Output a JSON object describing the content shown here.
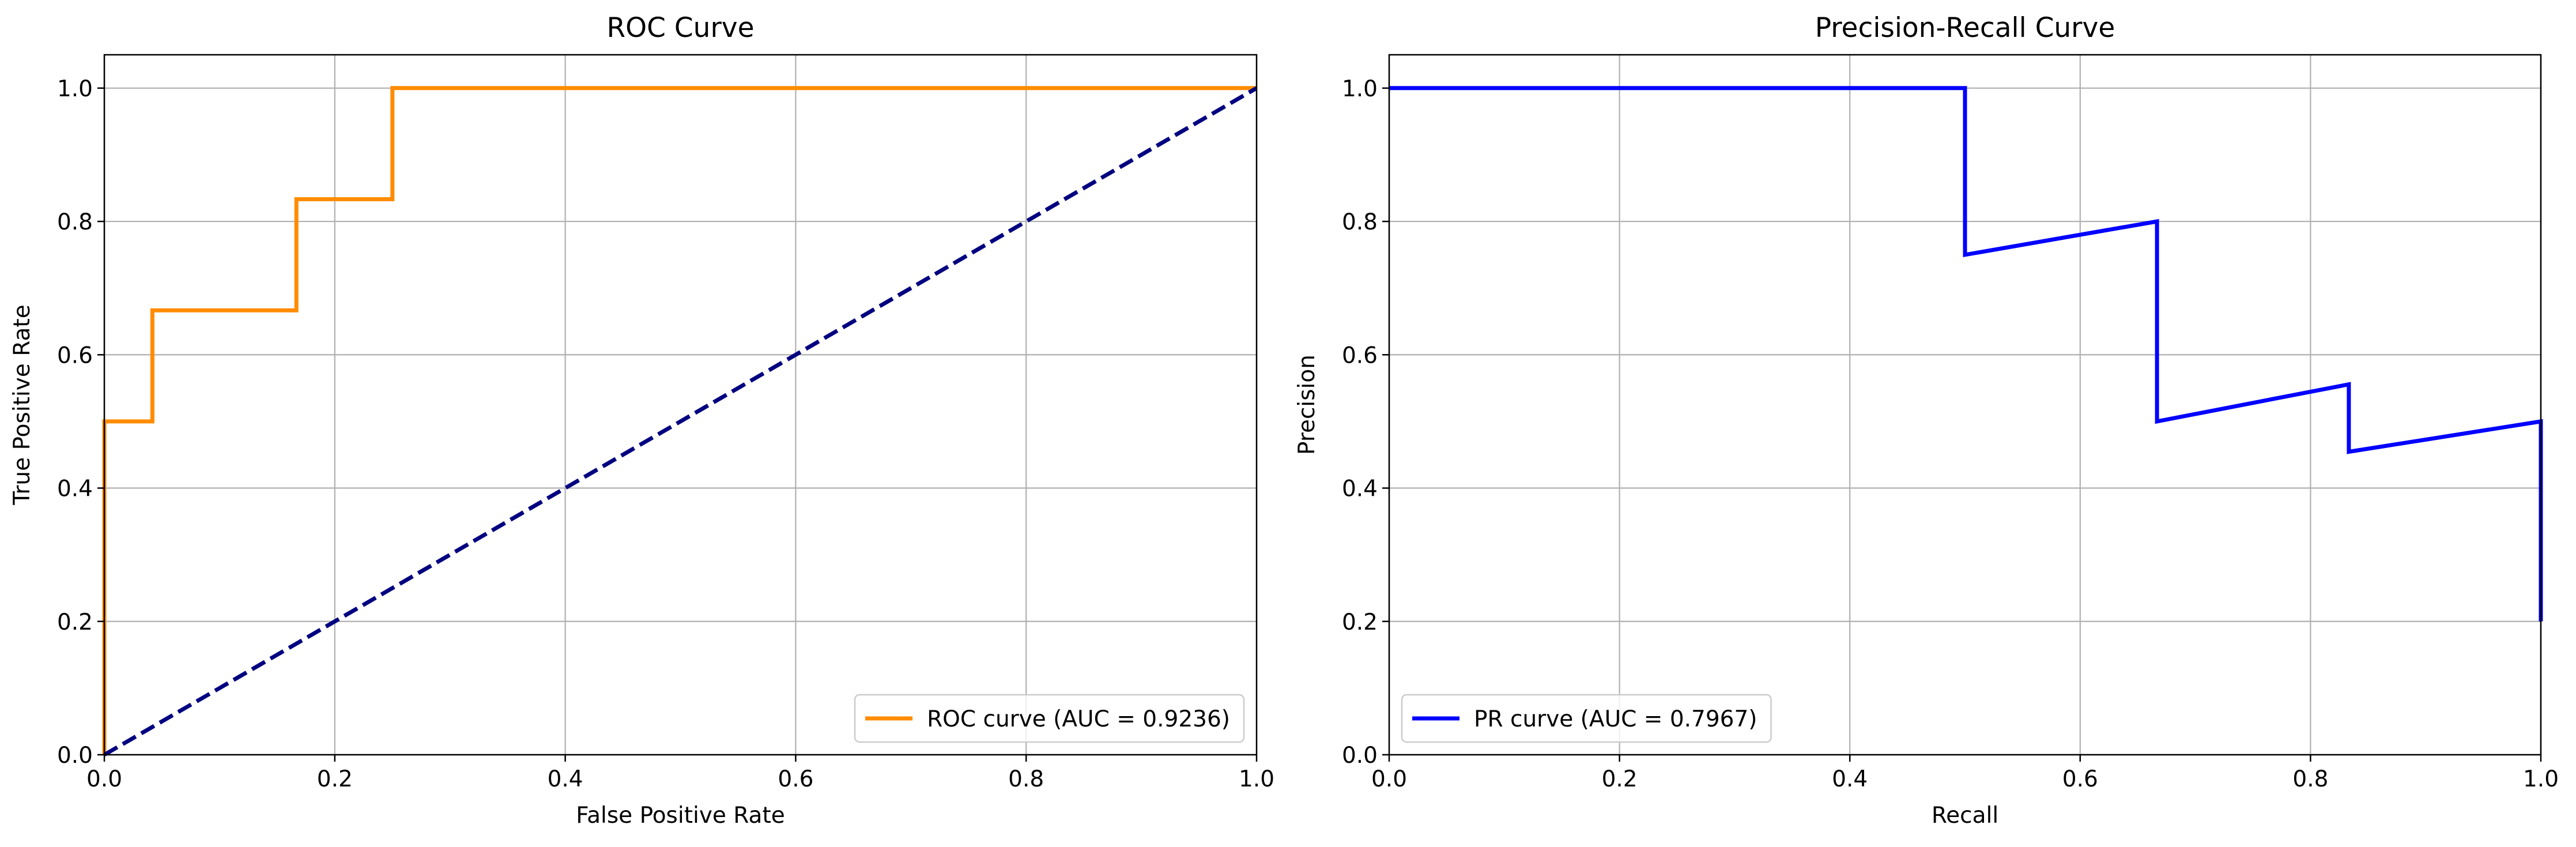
{
  "chart_data": [
    {
      "type": "line",
      "title": "ROC Curve",
      "xlabel": "False Positive Rate",
      "ylabel": "True Positive Rate",
      "xlim": [
        0.0,
        1.0
      ],
      "ylim": [
        0.0,
        1.05
      ],
      "xticks": [
        "0.0",
        "0.2",
        "0.4",
        "0.6",
        "0.8",
        "1.0"
      ],
      "yticks": [
        "0.0",
        "0.2",
        "0.4",
        "0.6",
        "0.8",
        "1.0"
      ],
      "grid": true,
      "legend_position": "lower-right",
      "series": [
        {
          "name": "ROC curve (AUC = 0.9236)",
          "color": "#ff8c00",
          "style": "solid",
          "x": [
            0.0,
            0.0,
            0.0417,
            0.0417,
            0.1667,
            0.1667,
            0.25,
            0.25,
            1.0
          ],
          "y": [
            0.0,
            0.5,
            0.5,
            0.6667,
            0.6667,
            0.8333,
            0.8333,
            1.0,
            1.0
          ]
        },
        {
          "name": "",
          "color": "#000080",
          "style": "dashed",
          "x": [
            0.0,
            1.0
          ],
          "y": [
            0.0,
            1.0
          ]
        }
      ]
    },
    {
      "type": "line",
      "title": "Precision-Recall Curve",
      "xlabel": "Recall",
      "ylabel": "Precision",
      "xlim": [
        0.0,
        1.0
      ],
      "ylim": [
        0.0,
        1.05
      ],
      "xticks": [
        "0.0",
        "0.2",
        "0.4",
        "0.6",
        "0.8",
        "1.0"
      ],
      "yticks": [
        "0.0",
        "0.2",
        "0.4",
        "0.6",
        "0.8",
        "1.0"
      ],
      "grid": true,
      "legend_position": "lower-left",
      "series": [
        {
          "name": "PR curve (AUC = 0.7967)",
          "color": "#0000ff",
          "style": "solid",
          "x": [
            0.0,
            0.5,
            0.5,
            0.6667,
            0.6667,
            0.8333,
            0.8333,
            1.0,
            1.0
          ],
          "y": [
            1.0,
            1.0,
            0.75,
            0.8,
            0.5,
            0.5556,
            0.4545,
            0.5,
            0.2
          ]
        }
      ]
    }
  ]
}
